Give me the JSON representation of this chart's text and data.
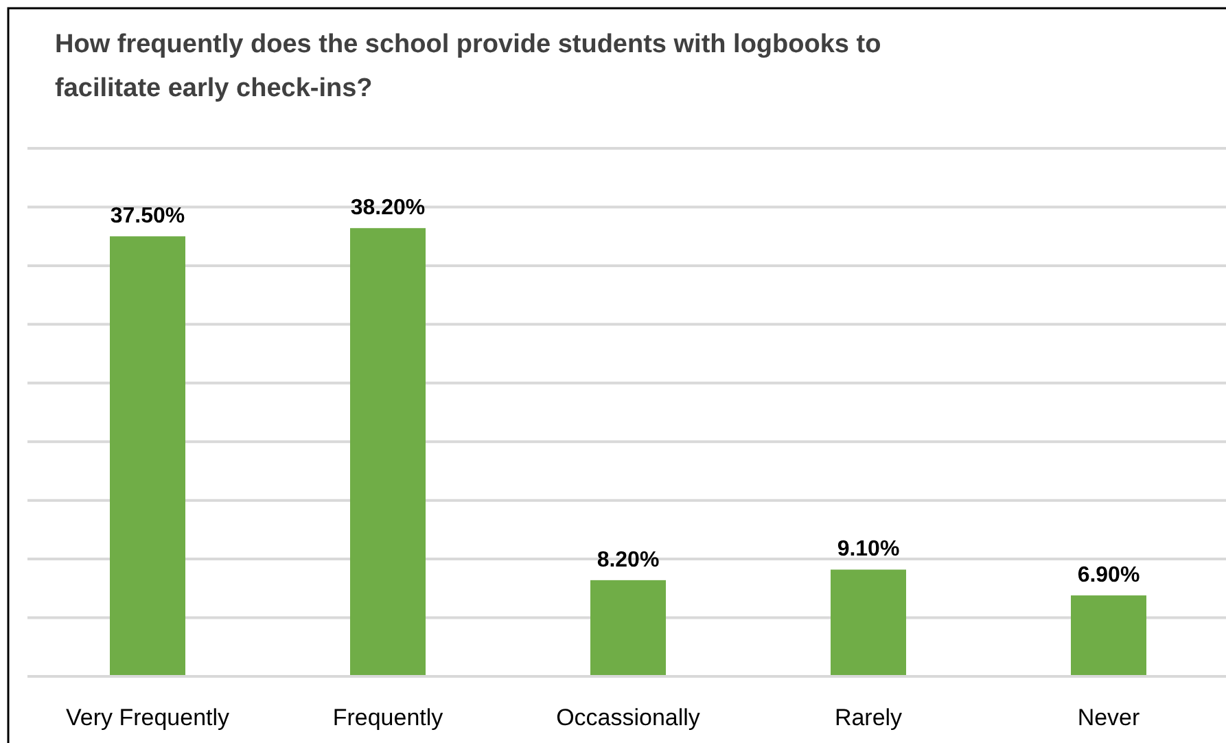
{
  "chart_data": {
    "type": "bar",
    "title": "How frequently does the school provide students with logbooks to facilitate early check-ins?",
    "categories": [
      "Very Frequently",
      "Frequently",
      "Occassionally",
      "Rarely",
      "Never"
    ],
    "values": [
      37.5,
      38.2,
      8.2,
      9.1,
      6.9
    ],
    "value_labels": [
      "37.50%",
      "38.20%",
      "8.20%",
      "9.10%",
      "6.90%"
    ],
    "color": "#70ad47",
    "ylim": [
      0,
      45
    ],
    "yticks": [
      {
        "value": 0,
        "label": null
      },
      {
        "value": 5,
        "label": null
      },
      {
        "value": 10,
        "label": null
      },
      {
        "value": 15,
        "label": null
      },
      {
        "value": 20,
        "label": null
      },
      {
        "value": 25,
        "label": null
      },
      {
        "value": 30,
        "label": null
      },
      {
        "value": 35,
        "label": null
      },
      {
        "value": 40,
        "label": null
      },
      {
        "value": 45,
        "label": null
      }
    ],
    "grid": "y",
    "tick_labels": "x"
  }
}
